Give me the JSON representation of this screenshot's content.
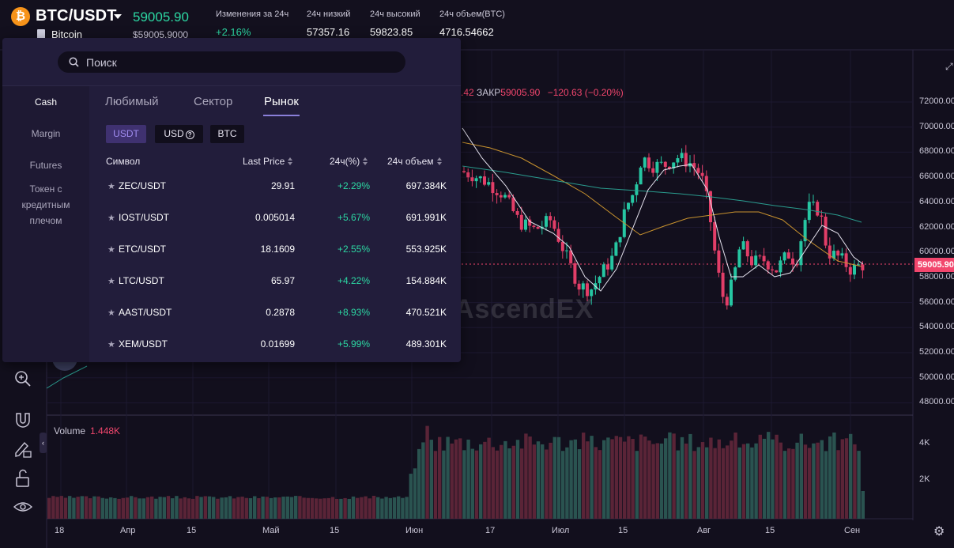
{
  "header": {
    "coin_icon": "bitcoin-icon",
    "pair": "BTC/USDT",
    "name": "Bitcoin",
    "last_price": "59005.90",
    "last_price_sub": "$59005.9000",
    "stats": [
      {
        "label": "Изменения за 24ч",
        "value": "+2.16%",
        "green": true
      },
      {
        "label": "24ч низкий",
        "value": "57357.16",
        "green": false
      },
      {
        "label": "24ч высокий",
        "value": "59823.85",
        "green": false
      },
      {
        "label": "24ч объем(BTC)",
        "value": "4716.54662",
        "green": false
      }
    ]
  },
  "chart": {
    "ohlc_prefix": ".42",
    "close_label": "ЗАКР",
    "close_value": "59005.90",
    "change": "−120.63 (−0.20%)",
    "current_price_tag": "59005.90",
    "watermark": "AscendEX",
    "volume_label": "Volume",
    "volume_value": "1.448K",
    "price_axis": [
      "72000.00",
      "70000.00",
      "68000.00",
      "66000.00",
      "64000.00",
      "62000.00",
      "60000.00",
      "58000.00",
      "56000.00",
      "54000.00",
      "52000.00",
      "50000.00",
      "48000.00"
    ],
    "volume_axis": [
      "4K",
      "2K"
    ],
    "time_axis": [
      "18",
      "Апр",
      "15",
      "Май",
      "15",
      "Июн",
      "17",
      "Июл",
      "15",
      "Авг",
      "15",
      "Сен"
    ]
  },
  "tools": [
    "zoom-in-icon",
    "magnet-icon",
    "lock-pencil-icon",
    "unlock-icon",
    "eye-icon"
  ],
  "panel": {
    "search_placeholder": "Поиск",
    "sidebar": [
      {
        "label": "Cash",
        "active": true
      },
      {
        "label": "Margin",
        "active": false
      },
      {
        "label": "Futures",
        "active": false
      },
      {
        "label": "Токен с кредитным плечом",
        "active": false
      }
    ],
    "tabs": [
      {
        "label": "Любимый",
        "active": false
      },
      {
        "label": "Сектор",
        "active": false
      },
      {
        "label": "Рынок",
        "active": true
      }
    ],
    "quote_filters": [
      {
        "label": "USDT",
        "active": true
      },
      {
        "label": "USD",
        "active": false,
        "help": true
      },
      {
        "label": "BTC",
        "active": false
      }
    ],
    "columns": {
      "symbol": "Символ",
      "last_price": "Last Price",
      "change": "24ч(%)",
      "volume": "24ч объем"
    },
    "rows": [
      {
        "symbol": "ZEC/USDT",
        "price": "29.91",
        "change": "+2.29%",
        "volume": "697.384K"
      },
      {
        "symbol": "IOST/USDT",
        "price": "0.005014",
        "change": "+5.67%",
        "volume": "691.991K"
      },
      {
        "symbol": "ETC/USDT",
        "price": "18.1609",
        "change": "+2.55%",
        "volume": "553.925K"
      },
      {
        "symbol": "LTC/USDT",
        "price": "65.97",
        "change": "+4.22%",
        "volume": "154.884K"
      },
      {
        "symbol": "AAST/USDT",
        "price": "0.2878",
        "change": "+8.93%",
        "volume": "470.521K"
      },
      {
        "symbol": "XEM/USDT",
        "price": "0.01699",
        "change": "+5.99%",
        "volume": "489.301K"
      }
    ]
  },
  "colors": {
    "up": "#26c6a2",
    "down": "#e23e68",
    "accent": "#8a7fd9",
    "bg": "#120f1d"
  }
}
